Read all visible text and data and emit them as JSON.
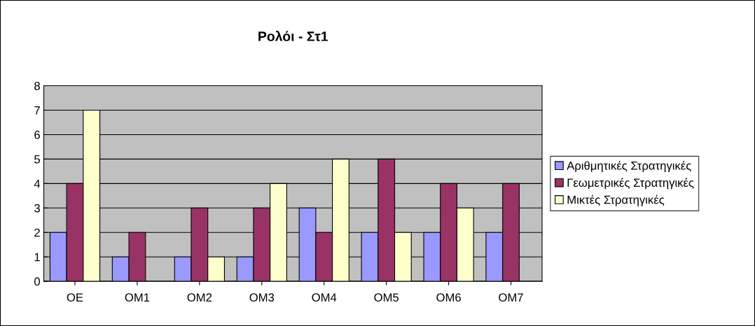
{
  "chart_data": {
    "type": "bar",
    "title": "Ρολόι - Στ1",
    "categories": [
      "ΟΕ",
      "ΟΜ1",
      "ΟΜ2",
      "ΟΜ3",
      "ΟΜ4",
      "ΟΜ5",
      "ΟΜ6",
      "ΟΜ7"
    ],
    "series": [
      {
        "name": "Αριθμητικές Στρατηγικές",
        "color": "#9999ff",
        "values": [
          2,
          1,
          1,
          1,
          3,
          2,
          2,
          2
        ]
      },
      {
        "name": "Γεωμετρικές Στρατηγικές",
        "color": "#993366",
        "values": [
          4,
          2,
          3,
          3,
          2,
          5,
          4,
          4
        ]
      },
      {
        "name": "Μικτές Στρατηγικές",
        "color": "#ffffcc",
        "values": [
          7,
          0,
          1,
          4,
          5,
          2,
          3,
          0
        ]
      }
    ],
    "ylim": [
      0,
      8
    ],
    "yticks": [
      0,
      1,
      2,
      3,
      4,
      5,
      6,
      7,
      8
    ],
    "grid": "y",
    "legend": "right"
  }
}
